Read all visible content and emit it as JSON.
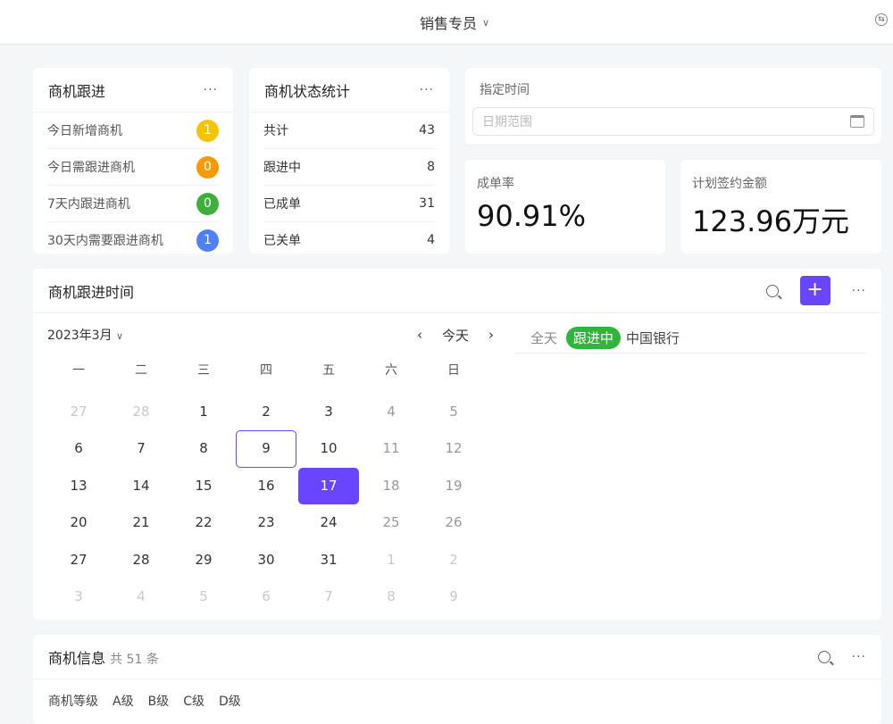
{
  "header": {
    "role": "销售专员",
    "switch_icon": "swap-circle-icon"
  },
  "follow": {
    "title": "商机跟进",
    "items": [
      {
        "label": "今日新增商机",
        "count": "1",
        "color": "#f5c400"
      },
      {
        "label": "今日需跟进商机",
        "count": "0",
        "color": "#f59a00"
      },
      {
        "label": "7天内跟进商机",
        "count": "0",
        "color": "#3fae3c"
      },
      {
        "label": "30天内需要跟进商机",
        "count": "1",
        "color": "#4f80f7"
      }
    ]
  },
  "status": {
    "title": "商机状态统计",
    "items": [
      {
        "label": "共计",
        "count": "43"
      },
      {
        "label": "跟进中",
        "count": "8"
      },
      {
        "label": "已成单",
        "count": "31"
      },
      {
        "label": "已关单",
        "count": "4"
      }
    ]
  },
  "time": {
    "label": "指定时间",
    "placeholder": "日期范围"
  },
  "rate": {
    "label": "成单率",
    "value": "90.91%"
  },
  "amount": {
    "label": "计划签约金额",
    "value": "123.96万元"
  },
  "schedule": {
    "title": "商机跟进时间",
    "month": "2023年3月",
    "today": "今天",
    "weekdays": [
      "一",
      "二",
      "三",
      "四",
      "五",
      "六",
      "日"
    ],
    "weeks": [
      [
        [
          "27",
          "other"
        ],
        [
          "28",
          "other"
        ],
        [
          "1",
          "cur"
        ],
        [
          "2",
          "cur"
        ],
        [
          "3",
          "cur"
        ],
        [
          "4",
          "weekend"
        ],
        [
          "5",
          "weekend"
        ]
      ],
      [
        [
          "6",
          "cur"
        ],
        [
          "7",
          "cur"
        ],
        [
          "8",
          "cur"
        ],
        [
          "9",
          "cur today"
        ],
        [
          "10",
          "cur"
        ],
        [
          "11",
          "weekend"
        ],
        [
          "12",
          "weekend"
        ]
      ],
      [
        [
          "13",
          "cur"
        ],
        [
          "14",
          "cur"
        ],
        [
          "15",
          "cur"
        ],
        [
          "16",
          "cur"
        ],
        [
          "17",
          "sel"
        ],
        [
          "18",
          "weekend"
        ],
        [
          "19",
          "weekend"
        ]
      ],
      [
        [
          "20",
          "cur"
        ],
        [
          "21",
          "cur"
        ],
        [
          "22",
          "cur"
        ],
        [
          "23",
          "cur"
        ],
        [
          "24",
          "cur"
        ],
        [
          "25",
          "weekend"
        ],
        [
          "26",
          "weekend"
        ]
      ],
      [
        [
          "27",
          "cur"
        ],
        [
          "28",
          "cur"
        ],
        [
          "29",
          "cur"
        ],
        [
          "30",
          "cur"
        ],
        [
          "31",
          "cur"
        ],
        [
          "1",
          "other"
        ],
        [
          "2",
          "other"
        ]
      ],
      [
        [
          "3",
          "other"
        ],
        [
          "4",
          "other"
        ],
        [
          "5",
          "other"
        ],
        [
          "6",
          "other"
        ],
        [
          "7",
          "other"
        ],
        [
          "8",
          "other"
        ],
        [
          "9",
          "other"
        ]
      ]
    ],
    "event": {
      "time": "全天",
      "status": "跟进中",
      "status_color": "#2fb53c",
      "name": "中国银行"
    },
    "accent": "#6a45ff"
  },
  "info": {
    "title": "商机信息",
    "count": "共 51 条",
    "filter_label": "商机等级",
    "levels": [
      "A级",
      "B级",
      "C级",
      "D级"
    ]
  }
}
